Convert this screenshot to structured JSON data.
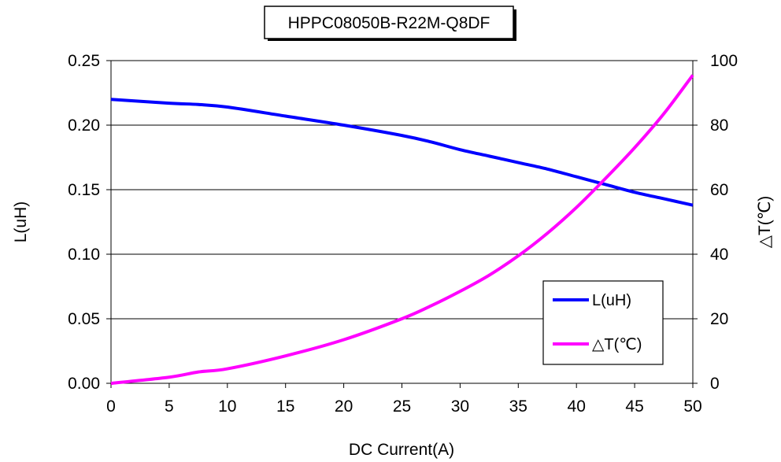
{
  "chart_data": {
    "type": "line",
    "title": "HPPC08050B-R22M-Q8DF",
    "xlabel": "DC Current(A)",
    "ylabel": "L(uH)",
    "y2label": "△T(℃)",
    "xlim": [
      0,
      50
    ],
    "ylim": [
      0,
      0.25
    ],
    "y2lim": [
      0,
      100
    ],
    "xticks": [
      "0",
      "5",
      "10",
      "15",
      "20",
      "25",
      "30",
      "35",
      "40",
      "45",
      "50"
    ],
    "yticks": [
      "0.00",
      "0.05",
      "0.10",
      "0.15",
      "0.20",
      "0.25"
    ],
    "y2ticks": [
      "0",
      "20",
      "40",
      "60",
      "80",
      "100"
    ],
    "grid": "horizontal",
    "legend_position": "bottom-right",
    "x": [
      0,
      5,
      7.5,
      10,
      15,
      20,
      25,
      27.5,
      30,
      32.5,
      35,
      37.5,
      40,
      42.5,
      45,
      47.5,
      50
    ],
    "series": [
      {
        "name": "L(uH)",
        "axis": "left",
        "color": "#0000ff",
        "values": [
          0.22,
          0.217,
          0.216,
          0.214,
          0.207,
          0.2,
          0.192,
          0.187,
          0.181,
          0.176,
          0.171,
          0.166,
          0.16,
          0.154,
          0.148,
          0.143,
          0.138
        ]
      },
      {
        "name": "△T(℃)",
        "axis": "right",
        "color": "#ff00ff",
        "values": [
          0,
          1.9,
          3.5,
          4.5,
          8.5,
          13.5,
          20.0,
          24.0,
          28.5,
          33.5,
          39.5,
          46.5,
          54.5,
          63.5,
          73.0,
          83.5,
          95.5
        ]
      }
    ]
  }
}
